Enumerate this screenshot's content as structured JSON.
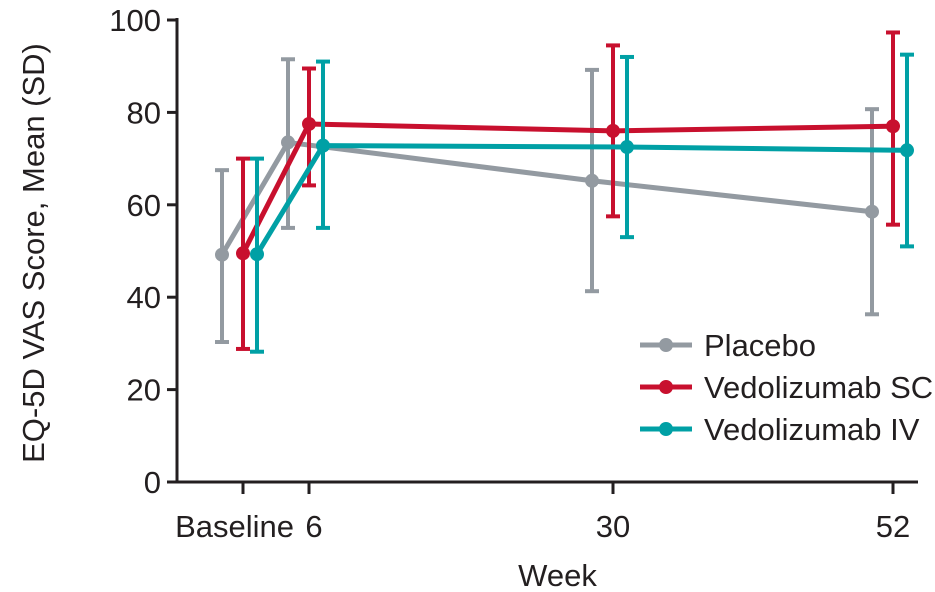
{
  "chart_data": {
    "type": "line",
    "xlabel": "Week",
    "ylabel": "EQ-5D VAS Score, Mean (SD)",
    "ylim": [
      0,
      100
    ],
    "yticks": [
      0,
      20,
      40,
      60,
      80,
      100
    ],
    "x_ticks": [
      {
        "label": "Baseline",
        "x": 0
      },
      {
        "label": "6",
        "x": 6
      },
      {
        "label": "30",
        "x": 30
      },
      {
        "label": "52",
        "x": 52
      }
    ],
    "grid": false,
    "legend_position": "bottom-right",
    "error_bars": "SD",
    "series": [
      {
        "name": "Placebo",
        "color": "#939aa1",
        "x": [
          0,
          6,
          30,
          52
        ],
        "y": [
          49.2,
          73.5,
          65.2,
          58.5
        ],
        "err_low": [
          30.3,
          55,
          41.3,
          36.3
        ],
        "err_high": [
          67.5,
          91.5,
          89.2,
          80.7
        ]
      },
      {
        "name": "Vedolizumab SC",
        "color": "#c8102e",
        "x": [
          0,
          6,
          30,
          52
        ],
        "y": [
          49.5,
          77.5,
          76,
          77
        ],
        "err_low": [
          28.8,
          64.2,
          57.5,
          55.7
        ],
        "err_high": [
          70,
          89.5,
          94.5,
          97.3
        ]
      },
      {
        "name": "Vedolizumab IV",
        "color": "#00a0a5",
        "x": [
          0,
          6,
          30,
          52
        ],
        "y": [
          49.3,
          72.8,
          72.5,
          71.8
        ],
        "err_low": [
          28.2,
          55,
          53,
          51
        ],
        "err_high": [
          70,
          91,
          92,
          92.5
        ]
      }
    ]
  }
}
